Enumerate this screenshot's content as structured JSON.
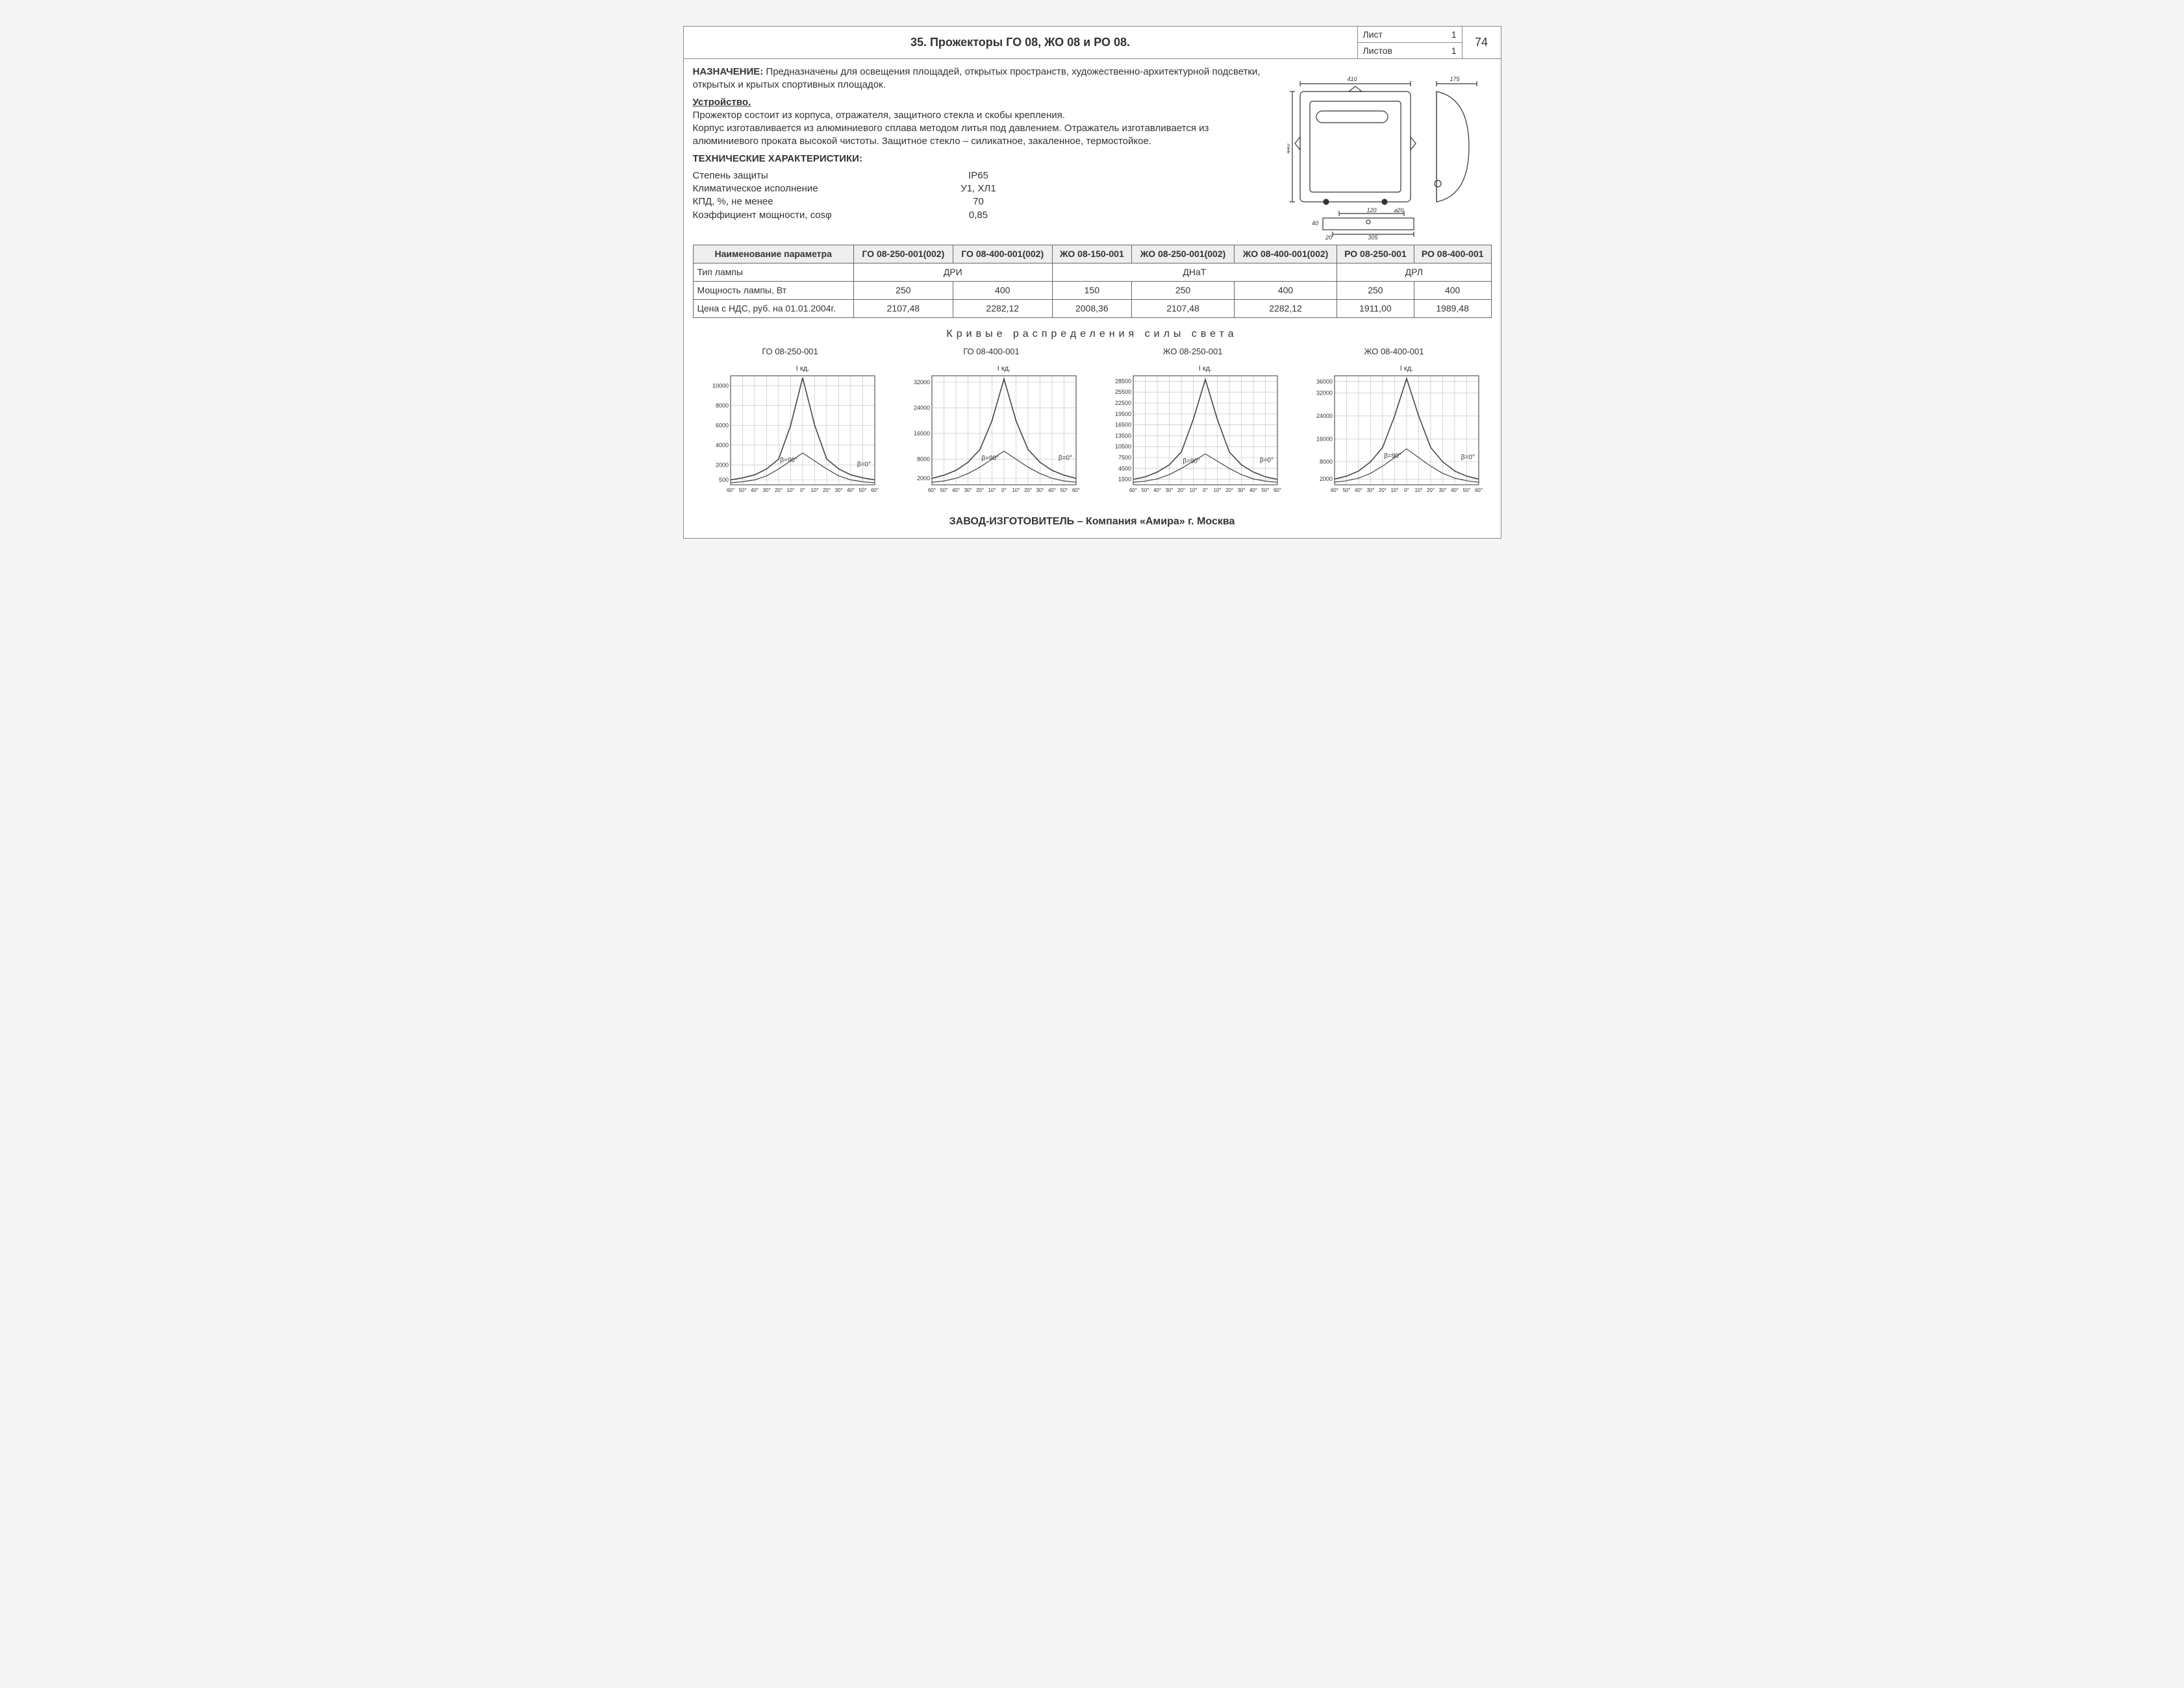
{
  "header": {
    "title": "35. Прожекторы ГО 08, ЖО 08 и РО 08.",
    "sheet_label": "Лист",
    "sheet_num": "1",
    "sheets_label": "Листов",
    "sheets_total": "1",
    "page_number": "74"
  },
  "purpose": {
    "heading": "НАЗНАЧЕНИЕ:",
    "text": "Предназначены для освещения площадей, открытых пространств, художественно-архитектурной подсветки, открытых и крытых спортивных площадок."
  },
  "device": {
    "heading": "Устройство.",
    "p1": "Прожектор состоит из корпуса, отражателя, защитного стекла и скобы крепления.",
    "p2": "Корпус изготавливается из алюминиевого сплава методом литья под давлением. Отражатель изготавливается из алюминиевого проката высокой чистоты. Защитное стекло – силикатное, закаленное, термостойкое."
  },
  "techspecs": {
    "heading": "ТЕХНИЧЕСКИЕ ХАРАКТЕРИСТИКИ:",
    "rows": [
      {
        "label": "Степень защиты",
        "value": "IP65"
      },
      {
        "label": "Климатическое исполнение",
        "value": "У1, ХЛ1"
      },
      {
        "label": "КПД, %, не менее",
        "value": "70"
      },
      {
        "label": "Коэффициент мощности, cosφ",
        "value": "0,85"
      }
    ]
  },
  "drawing": {
    "dims": {
      "w_outer": "410",
      "h_label": "440",
      "side_w": "175",
      "base_a": "120",
      "base_hole": "⌀20",
      "base_b": "305",
      "base_pad": "20",
      "base_h": "40"
    }
  },
  "params_table": {
    "header_param": "Наименование параметра",
    "columns": [
      "ГО 08-250-001(002)",
      "ГО 08-400-001(002)",
      "ЖО 08-150-001",
      "ЖО 08-250-001(002)",
      "ЖО 08-400-001(002)",
      "РО 08-250-001",
      "РО 08-400-001"
    ],
    "rows": [
      {
        "label": "Тип лампы",
        "spans": [
          {
            "text": "ДРИ",
            "colspan": 2
          },
          {
            "text": "ДНаТ",
            "colspan": 3
          },
          {
            "text": "ДРЛ",
            "colspan": 2
          }
        ]
      },
      {
        "label": "Мощность лампы, Вт",
        "cells": [
          "250",
          "400",
          "150",
          "250",
          "400",
          "250",
          "400"
        ]
      },
      {
        "label": "Цена с НДС, руб. на 01.01.2004г.",
        "cells": [
          "2107,48",
          "2282,12",
          "2008,36",
          "2107,48",
          "2282,12",
          "1911,00",
          "1989,48"
        ]
      }
    ]
  },
  "curves": {
    "title": "Кривые распределения силы света",
    "y_axis_label": "I кд.",
    "x_ticks": [
      "60°",
      "50°",
      "40°",
      "30°",
      "20°",
      "10°",
      "0°",
      "10°",
      "20°",
      "30°",
      "40°",
      "50°",
      "60°"
    ],
    "beta_main": "β=0°",
    "beta_sub": "β=90°",
    "charts": [
      {
        "title": "ГО 08-250-001",
        "y_ticks": [
          10000,
          8000,
          6000,
          4000,
          2000,
          500
        ],
        "ylim": [
          0,
          11000
        ],
        "series0": [
          500,
          700,
          1000,
          1600,
          2600,
          6000,
          10800,
          6000,
          2600,
          1600,
          1000,
          700,
          500
        ],
        "series90": [
          200,
          300,
          500,
          900,
          1600,
          2400,
          3200,
          2400,
          1600,
          900,
          500,
          300,
          200
        ],
        "color": "#444"
      },
      {
        "title": "ГО 08-400-001",
        "y_ticks": [
          32000,
          24000,
          16000,
          8000,
          2000
        ],
        "ylim": [
          0,
          34000
        ],
        "series0": [
          2000,
          3000,
          4500,
          7000,
          11000,
          20000,
          33000,
          20000,
          11000,
          7000,
          4500,
          3000,
          2000
        ],
        "series90": [
          800,
          1200,
          2000,
          3500,
          5500,
          8000,
          10500,
          8000,
          5500,
          3500,
          2000,
          1200,
          800
        ],
        "color": "#444"
      },
      {
        "title": "ЖО 08-250-001",
        "y_ticks": [
          28500,
          25500,
          22500,
          19500,
          16500,
          13500,
          10500,
          7500,
          4500,
          1500
        ],
        "ylim": [
          0,
          30000
        ],
        "series0": [
          1500,
          2200,
          3500,
          5500,
          9000,
          18000,
          29000,
          18000,
          9000,
          5500,
          3500,
          2200,
          1500
        ],
        "series90": [
          700,
          1000,
          1600,
          2800,
          4500,
          6500,
          8500,
          6500,
          4500,
          2800,
          1600,
          1000,
          700
        ],
        "color": "#444"
      },
      {
        "title": "ЖО 08-400-001",
        "y_ticks": [
          36000,
          32000,
          24000,
          16000,
          8000,
          2000
        ],
        "ylim": [
          0,
          38000
        ],
        "series0": [
          2000,
          3000,
          4800,
          8000,
          13000,
          24000,
          37000,
          24000,
          13000,
          8000,
          4800,
          3000,
          2000
        ],
        "series90": [
          900,
          1400,
          2300,
          4000,
          6500,
          9500,
          12500,
          9500,
          6500,
          4000,
          2300,
          1400,
          900
        ],
        "color": "#444"
      }
    ]
  },
  "footer": "ЗАВОД-ИЗГОТОВИТЕЛЬ – Компания «Амира» г. Москва"
}
